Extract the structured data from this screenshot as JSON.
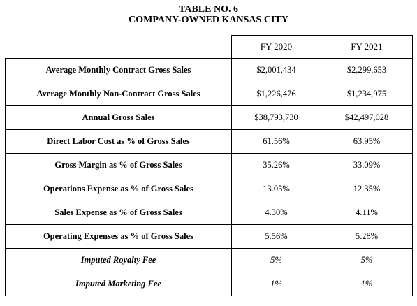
{
  "title": {
    "line1": "TABLE NO. 6",
    "line2": "COMPANY-OWNED KANSAS CITY"
  },
  "table": {
    "columns": [
      "FY 2020",
      "FY 2021"
    ],
    "rows": [
      {
        "label": "Average Monthly Contract Gross Sales",
        "values": [
          "$2,001,434",
          "$2,299,653"
        ],
        "italic": false
      },
      {
        "label": "Average Monthly Non-Contract Gross Sales",
        "values": [
          "$1,226,476",
          "$1,234,975"
        ],
        "italic": false
      },
      {
        "label": "Annual Gross Sales",
        "values": [
          "$38,793,730",
          "$42,497,028"
        ],
        "italic": false
      },
      {
        "label": "Direct Labor Cost as % of Gross Sales",
        "values": [
          "61.56%",
          "63.95%"
        ],
        "italic": false
      },
      {
        "label": "Gross Margin as % of Gross Sales",
        "values": [
          "35.26%",
          "33.09%"
        ],
        "italic": false
      },
      {
        "label": "Operations Expense as % of Gross Sales",
        "values": [
          "13.05%",
          "12.35%"
        ],
        "italic": false
      },
      {
        "label": "Sales Expense as % of Gross Sales",
        "values": [
          "4.30%",
          "4.11%"
        ],
        "italic": false
      },
      {
        "label": "Operating Expenses as % of Gross Sales",
        "values": [
          "5.56%",
          "5.28%"
        ],
        "italic": false
      },
      {
        "label": "Imputed Royalty Fee",
        "values": [
          "5%",
          "5%"
        ],
        "italic": true
      },
      {
        "label": "Imputed Marketing Fee",
        "values": [
          "1%",
          "1%"
        ],
        "italic": true
      }
    ]
  }
}
